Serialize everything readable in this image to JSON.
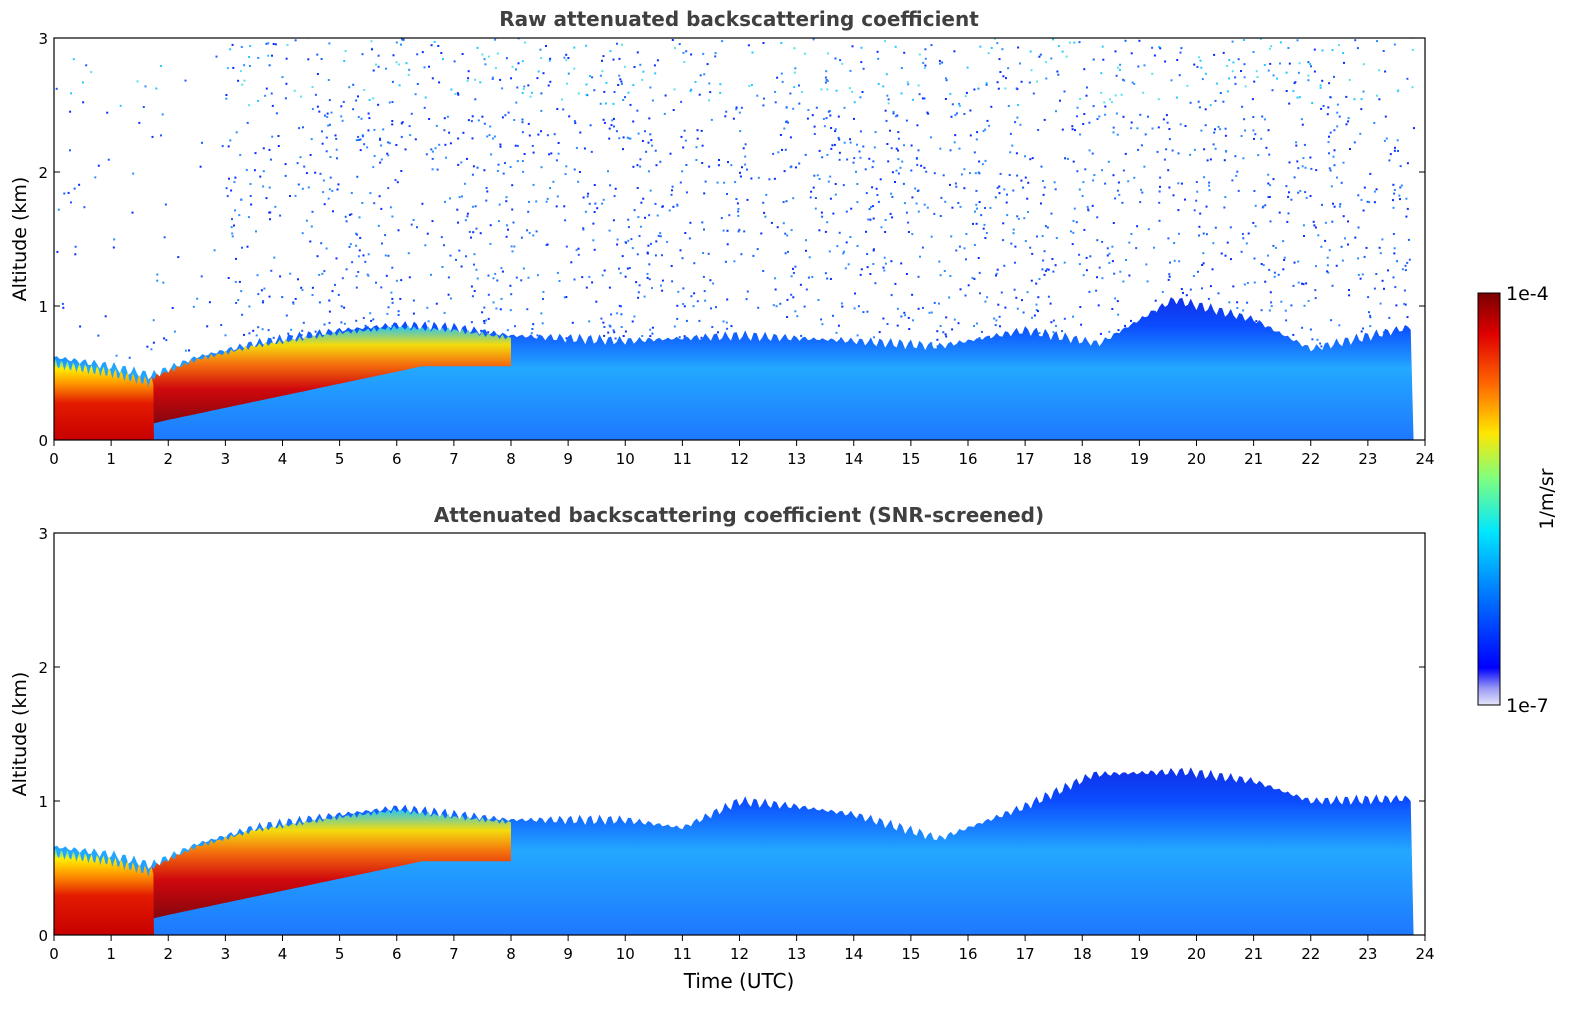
{
  "chart_data": [
    {
      "type": "heatmap",
      "title": "Raw attenuated backscattering coefficient",
      "xlabel": "",
      "ylabel": "Altitude (km)",
      "xlim": [
        0,
        24
      ],
      "ylim": [
        0,
        3
      ],
      "xticks": [
        0,
        1,
        2,
        3,
        4,
        5,
        6,
        7,
        8,
        9,
        10,
        11,
        12,
        13,
        14,
        15,
        16,
        17,
        18,
        19,
        20,
        21,
        22,
        23,
        24
      ],
      "yticks": [
        0,
        1,
        2,
        3
      ],
      "screened": false,
      "approx_boundary_layer_top_km": [
        {
          "t": 0,
          "h": 0.62
        },
        {
          "t": 1,
          "h": 0.55
        },
        {
          "t": 1.7,
          "h": 0.48
        },
        {
          "t": 2.5,
          "h": 0.62
        },
        {
          "t": 3.5,
          "h": 0.72
        },
        {
          "t": 5,
          "h": 0.82
        },
        {
          "t": 6,
          "h": 0.86
        },
        {
          "t": 7,
          "h": 0.84
        },
        {
          "t": 8,
          "h": 0.78
        },
        {
          "t": 10,
          "h": 0.74
        },
        {
          "t": 12,
          "h": 0.78
        },
        {
          "t": 14,
          "h": 0.74
        },
        {
          "t": 15.5,
          "h": 0.7
        },
        {
          "t": 17,
          "h": 0.82
        },
        {
          "t": 18.3,
          "h": 0.72
        },
        {
          "t": 19.6,
          "h": 1.05
        },
        {
          "t": 21,
          "h": 0.9
        },
        {
          "t": 22,
          "h": 0.68
        },
        {
          "t": 23.8,
          "h": 0.85
        }
      ]
    },
    {
      "type": "heatmap",
      "title": "Attenuated backscattering coefficient (SNR-screened)",
      "xlabel": "Time (UTC)",
      "ylabel": "Altitude (km)",
      "xlim": [
        0,
        24
      ],
      "ylim": [
        0,
        3
      ],
      "xticks": [
        0,
        1,
        2,
        3,
        4,
        5,
        6,
        7,
        8,
        9,
        10,
        11,
        12,
        13,
        14,
        15,
        16,
        17,
        18,
        19,
        20,
        21,
        22,
        23,
        24
      ],
      "yticks": [
        0,
        1,
        2,
        3
      ],
      "screened": true,
      "approx_boundary_layer_top_km": [
        {
          "t": 0,
          "h": 0.66
        },
        {
          "t": 1,
          "h": 0.6
        },
        {
          "t": 1.7,
          "h": 0.52
        },
        {
          "t": 2.5,
          "h": 0.68
        },
        {
          "t": 3.5,
          "h": 0.8
        },
        {
          "t": 5,
          "h": 0.9
        },
        {
          "t": 6,
          "h": 0.95
        },
        {
          "t": 7,
          "h": 0.9
        },
        {
          "t": 8,
          "h": 0.86
        },
        {
          "t": 10,
          "h": 0.86
        },
        {
          "t": 11,
          "h": 0.8
        },
        {
          "t": 12,
          "h": 1.0
        },
        {
          "t": 13,
          "h": 0.96
        },
        {
          "t": 14,
          "h": 0.9
        },
        {
          "t": 15.5,
          "h": 0.72
        },
        {
          "t": 17,
          "h": 0.96
        },
        {
          "t": 18.2,
          "h": 1.2
        },
        {
          "t": 19.8,
          "h": 1.22
        },
        {
          "t": 21,
          "h": 1.15
        },
        {
          "t": 22,
          "h": 1.0
        },
        {
          "t": 23.8,
          "h": 1.02
        }
      ]
    }
  ],
  "colorbar": {
    "label": "1/m/sr",
    "max_label": "1e-4",
    "min_label": "1e-7",
    "colormap": "jet"
  }
}
